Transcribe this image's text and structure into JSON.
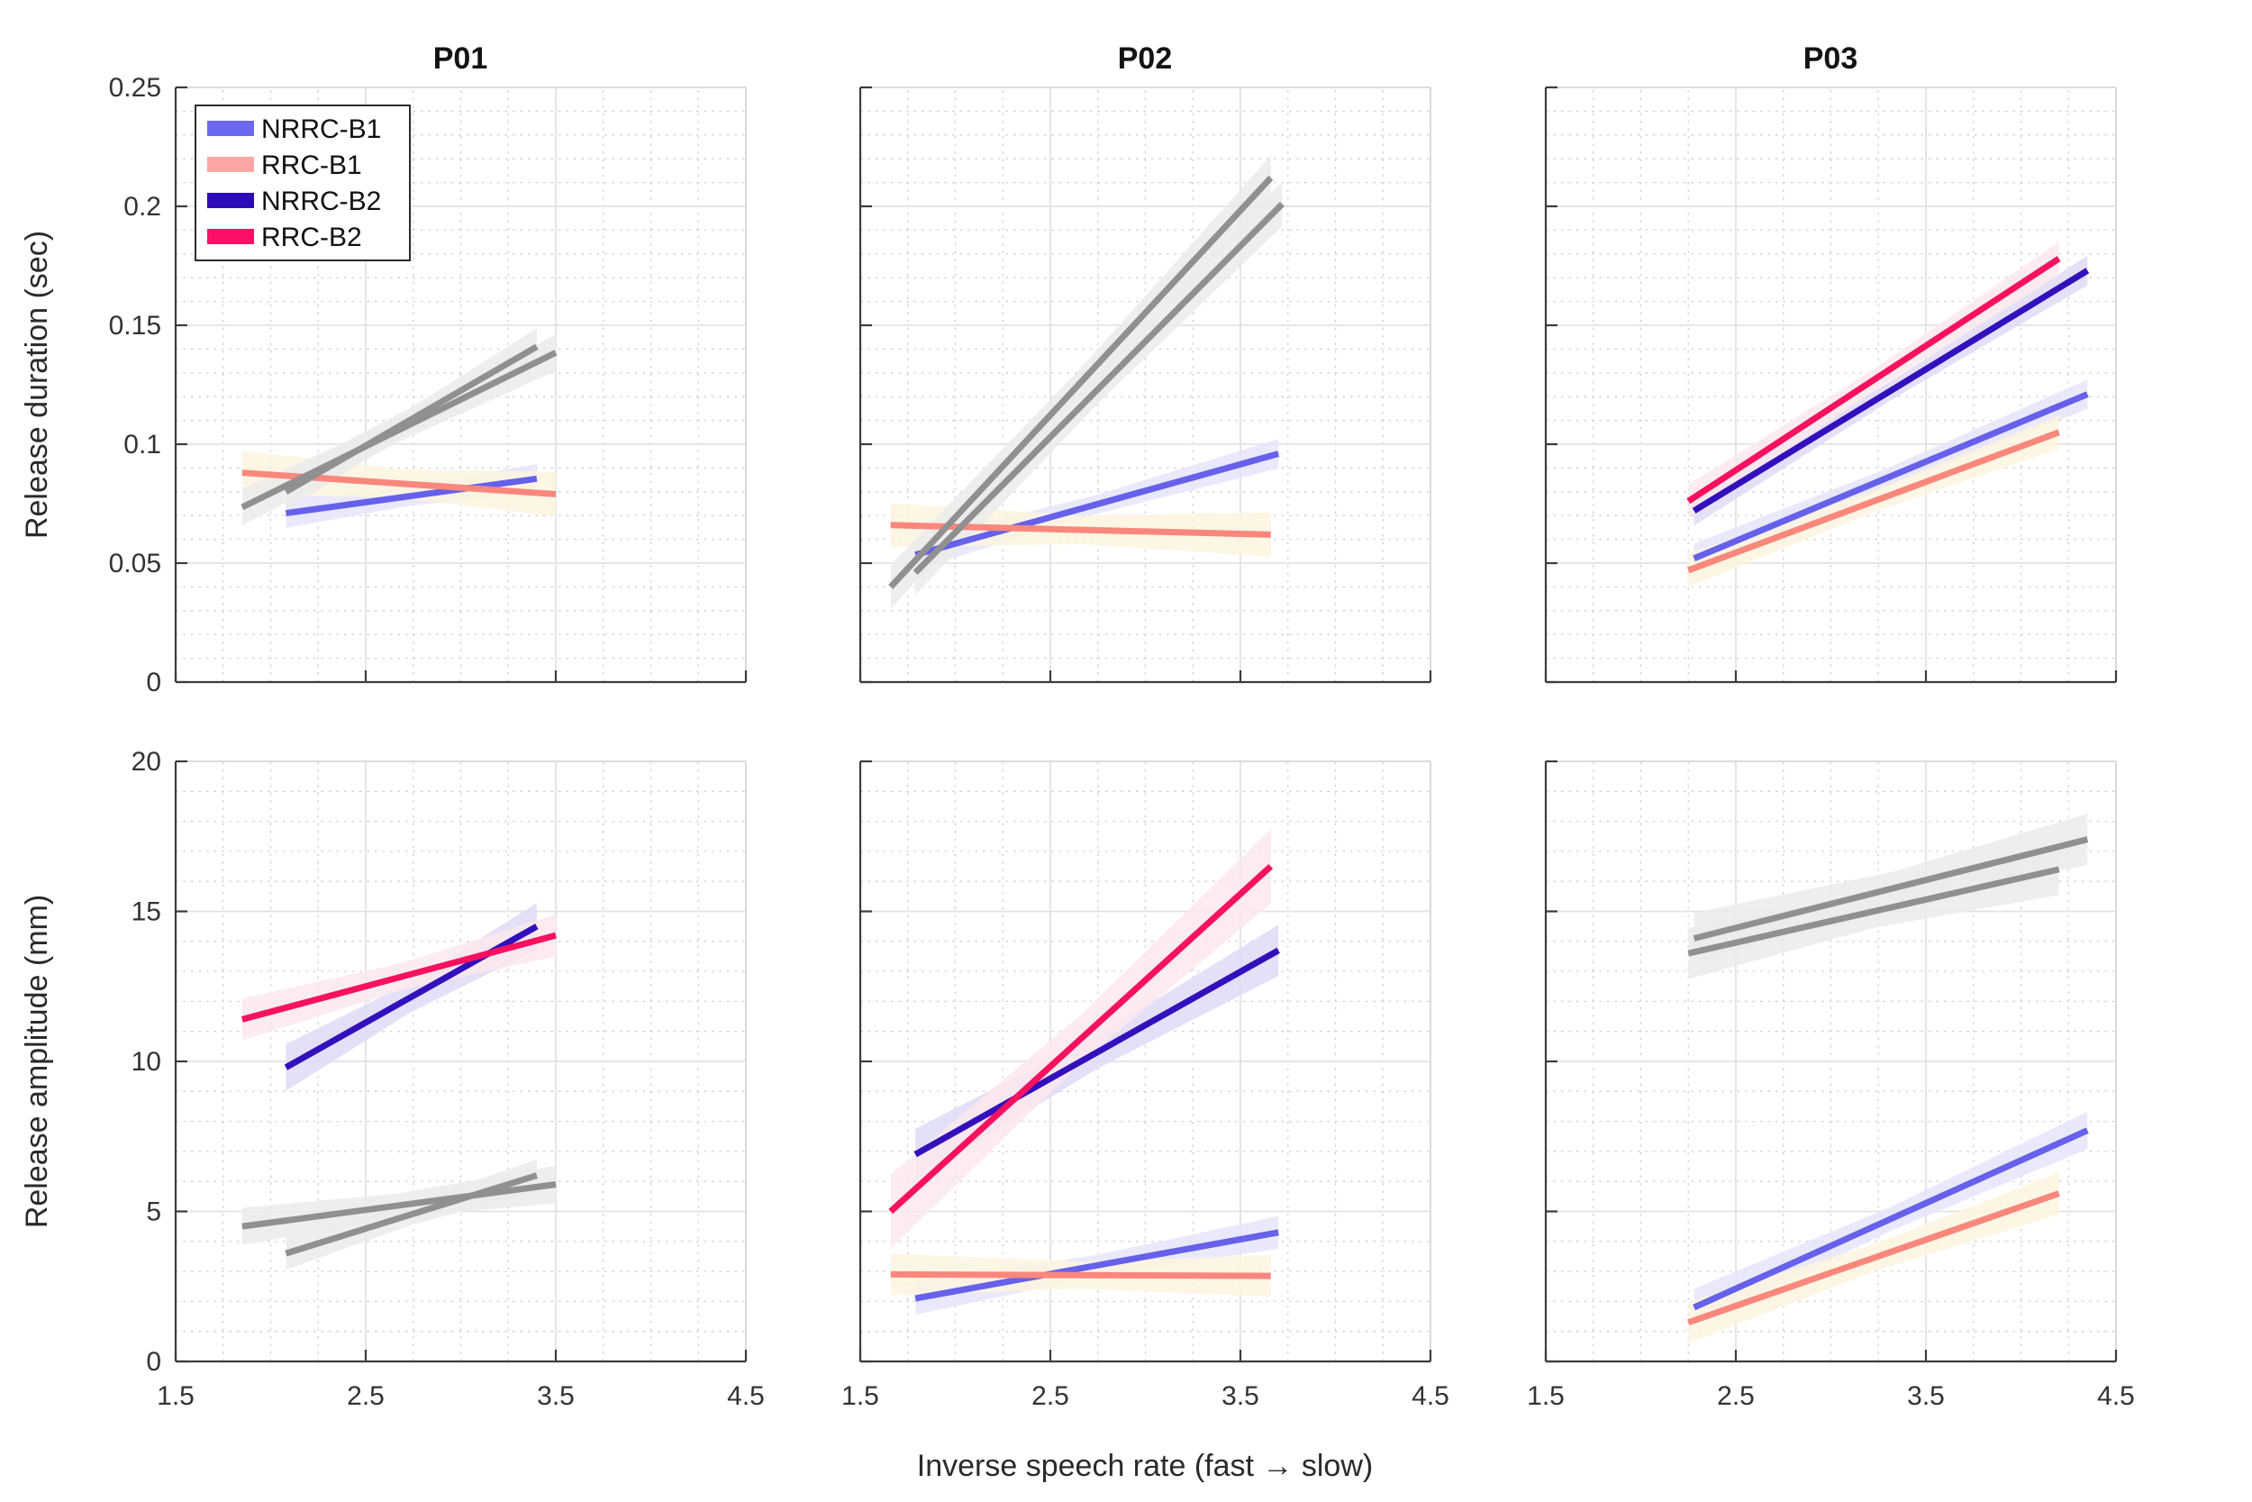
{
  "figure": {
    "background": "#ffffff",
    "xlabel": "Inverse speech rate (fast → slow)"
  },
  "chart_data": {
    "type": "line",
    "description": "2x3 grid of fitted regression lines with confidence bands; gray lines are de-emphasized fits",
    "xlabel": "Inverse speech rate (fast → slow)",
    "xlim": [
      1.5,
      4.5
    ],
    "xticks": {
      "values": [
        1.5,
        2.5,
        3.5,
        4.5
      ],
      "labels": [
        "1.5",
        "2.5",
        "3.5",
        "4.5"
      ]
    },
    "x_minor_step": 0.25,
    "grid": {
      "major": true,
      "minor": true
    },
    "legend": {
      "position": "top-left of first panel",
      "entries": [
        {
          "label": "NRRC-B1",
          "color": "#6B68F0"
        },
        {
          "label": "RRC-B1",
          "color": "#FBA6A4"
        },
        {
          "label": "NRRC-B2",
          "color": "#2E0BB8"
        },
        {
          "label": "RRC-B2",
          "color": "#FB0F67"
        }
      ]
    },
    "colors": {
      "NRRC-B1": {
        "line": "#6561EA",
        "band": "#E6E4FA"
      },
      "RRC-B1": {
        "line": "#F9877C",
        "band": "#FDF4DF"
      },
      "NRRC-B2": {
        "line": "#3310BC",
        "band": "#DFDBF6"
      },
      "RRC-B2": {
        "line": "#F7115F",
        "band": "#FCE7EC"
      },
      "gray": {
        "line": "#909090",
        "band": "#EBEBEB"
      }
    },
    "columns": [
      {
        "title": "P01"
      },
      {
        "title": "P02"
      },
      {
        "title": "P03"
      }
    ],
    "rows": [
      {
        "ylabel": "Release duration (sec)",
        "ylim": [
          0,
          0.25
        ],
        "yticks": {
          "values": [
            0,
            0.05,
            0.1,
            0.15,
            0.2,
            0.25
          ],
          "labels": [
            "0",
            "0.05",
            "0.1",
            "0.15",
            "0.2",
            "0.25"
          ]
        },
        "y_minor_step": 0.01,
        "panels": [
          {
            "column": "P01",
            "series": [
              {
                "name": "NRRC-B1",
                "x": [
                  2.08,
                  3.4
                ],
                "y": [
                  0.071,
                  0.0855
                ],
                "band": 0.004,
                "gray": false
              },
              {
                "name": "RRC-B1",
                "x": [
                  1.85,
                  3.5
                ],
                "y": [
                  0.088,
                  0.079
                ],
                "band": 0.006,
                "gray": false
              },
              {
                "name": "NRRC-B2",
                "x": [
                  2.08,
                  3.4
                ],
                "y": [
                  0.08,
                  0.141
                ],
                "band": 0.005,
                "gray": true
              },
              {
                "name": "RRC-B2",
                "x": [
                  1.85,
                  3.5
                ],
                "y": [
                  0.0735,
                  0.1385
                ],
                "band": 0.005,
                "gray": true
              }
            ]
          },
          {
            "column": "P02",
            "series": [
              {
                "name": "NRRC-B1",
                "x": [
                  1.79,
                  3.7
                ],
                "y": [
                  0.0535,
                  0.096
                ],
                "band": 0.004,
                "gray": false
              },
              {
                "name": "RRC-B1",
                "x": [
                  1.66,
                  3.66
                ],
                "y": [
                  0.066,
                  0.062
                ],
                "band": 0.006,
                "gray": false
              },
              {
                "name": "NRRC-B2",
                "x": [
                  1.79,
                  3.72
                ],
                "y": [
                  0.046,
                  0.201
                ],
                "band": 0.006,
                "gray": true
              },
              {
                "name": "RRC-B2",
                "x": [
                  1.66,
                  3.66
                ],
                "y": [
                  0.04,
                  0.212
                ],
                "band": 0.006,
                "gray": true
              }
            ]
          },
          {
            "column": "P03",
            "series": [
              {
                "name": "NRRC-B1",
                "x": [
                  2.28,
                  4.35
                ],
                "y": [
                  0.052,
                  0.121
                ],
                "band": 0.004,
                "gray": false
              },
              {
                "name": "RRC-B1",
                "x": [
                  2.25,
                  4.2
                ],
                "y": [
                  0.047,
                  0.105
                ],
                "band": 0.0045,
                "gray": false
              },
              {
                "name": "NRRC-B2",
                "x": [
                  2.28,
                  4.35
                ],
                "y": [
                  0.072,
                  0.173
                ],
                "band": 0.004,
                "gray": false
              },
              {
                "name": "RRC-B2",
                "x": [
                  2.25,
                  4.2
                ],
                "y": [
                  0.076,
                  0.178
                ],
                "band": 0.0045,
                "gray": false
              }
            ]
          }
        ]
      },
      {
        "ylabel": "Release amplitude (mm)",
        "ylim": [
          0,
          20
        ],
        "yticks": {
          "values": [
            0,
            5,
            10,
            15,
            20
          ],
          "labels": [
            "0",
            "5",
            "10",
            "15",
            "20"
          ]
        },
        "y_minor_step": 1,
        "panels": [
          {
            "column": "P01",
            "series": [
              {
                "name": "NRRC-B1",
                "x": [
                  2.08,
                  3.4
                ],
                "y": [
                  3.6,
                  6.2
                ],
                "band": 0.35,
                "gray": true
              },
              {
                "name": "RRC-B1",
                "x": [
                  1.85,
                  3.5
                ],
                "y": [
                  4.5,
                  5.9
                ],
                "band": 0.4,
                "gray": true
              },
              {
                "name": "NRRC-B2",
                "x": [
                  2.08,
                  3.4
                ],
                "y": [
                  9.8,
                  14.5
                ],
                "band": 0.5,
                "gray": false
              },
              {
                "name": "RRC-B2",
                "x": [
                  1.85,
                  3.5
                ],
                "y": [
                  11.4,
                  14.2
                ],
                "band": 0.45,
                "gray": false
              }
            ]
          },
          {
            "column": "P02",
            "series": [
              {
                "name": "NRRC-B1",
                "x": [
                  1.79,
                  3.7
                ],
                "y": [
                  2.1,
                  4.3
                ],
                "band": 0.35,
                "gray": false
              },
              {
                "name": "RRC-B1",
                "x": [
                  1.66,
                  3.66
                ],
                "y": [
                  2.9,
                  2.85
                ],
                "band": 0.45,
                "gray": false
              },
              {
                "name": "NRRC-B2",
                "x": [
                  1.79,
                  3.7
                ],
                "y": [
                  6.9,
                  13.7
                ],
                "band": 0.55,
                "gray": false
              },
              {
                "name": "RRC-B2",
                "x": [
                  1.66,
                  3.66
                ],
                "y": [
                  5.0,
                  16.5
                ],
                "band": 0.8,
                "gray": false
              }
            ]
          },
          {
            "column": "P03",
            "series": [
              {
                "name": "NRRC-B1",
                "x": [
                  2.28,
                  4.35
                ],
                "y": [
                  1.8,
                  7.7
                ],
                "band": 0.4,
                "gray": false
              },
              {
                "name": "RRC-B1",
                "x": [
                  2.25,
                  4.2
                ],
                "y": [
                  1.3,
                  5.6
                ],
                "band": 0.45,
                "gray": false
              },
              {
                "name": "NRRC-B2",
                "x": [
                  2.28,
                  4.35
                ],
                "y": [
                  14.1,
                  17.4
                ],
                "band": 0.55,
                "gray": true
              },
              {
                "name": "RRC-B2",
                "x": [
                  2.25,
                  4.2
                ],
                "y": [
                  13.6,
                  16.4
                ],
                "band": 0.55,
                "gray": true
              }
            ]
          }
        ]
      }
    ]
  }
}
